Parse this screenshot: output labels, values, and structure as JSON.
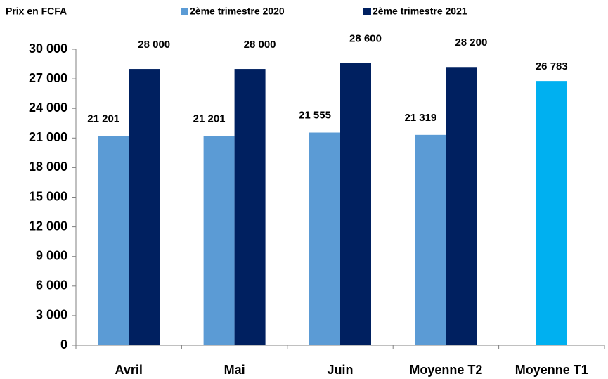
{
  "chart_data": {
    "type": "bar",
    "title": "Prix en FCFA",
    "categories": [
      "Avril",
      "Mai",
      "Juin",
      "Moyenne T2",
      "Moyenne T1"
    ],
    "series": [
      {
        "name": "2ème trimestre 2020",
        "color": "#5b9bd5",
        "values": [
          21201,
          21201,
          21555,
          21319,
          null
        ],
        "value_labels": [
          "21 201",
          "21 201",
          "21 555",
          "21 319",
          null
        ]
      },
      {
        "name": "2ème trimestre 2021",
        "color": "#002060",
        "values": [
          28000,
          28000,
          28600,
          28200,
          null
        ],
        "value_labels": [
          "28 000",
          "28 000",
          "28 600",
          "28 200",
          null
        ]
      },
      {
        "color": "#00b0f0",
        "values": [
          null,
          null,
          null,
          null,
          26783
        ],
        "value_labels": [
          null,
          null,
          null,
          null,
          "26 783"
        ]
      }
    ],
    "ylim": [
      0,
      30000
    ],
    "yticks": [
      {
        "value": 0,
        "label": "0"
      },
      {
        "value": 3000,
        "label": "3 000"
      },
      {
        "value": 6000,
        "label": "6 000"
      },
      {
        "value": 9000,
        "label": "9 000"
      },
      {
        "value": 12000,
        "label": "12 000"
      },
      {
        "value": 15000,
        "label": "15 000"
      },
      {
        "value": 18000,
        "label": "18 000"
      },
      {
        "value": 21000,
        "label": "21 000"
      },
      {
        "value": 24000,
        "label": "24 000"
      },
      {
        "value": 27000,
        "label": "27 000"
      },
      {
        "value": 30000,
        "label": "30 000"
      }
    ],
    "grid": false,
    "legend": "top"
  }
}
